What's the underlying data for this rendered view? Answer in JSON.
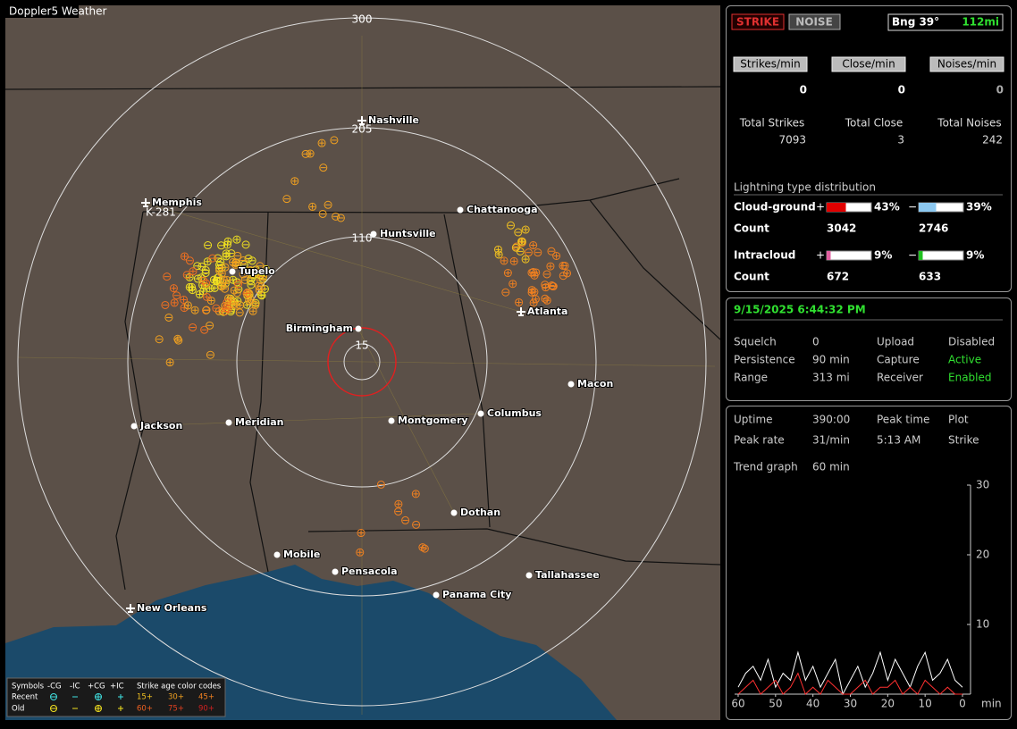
{
  "map": {
    "title": "Doppler5 Weather",
    "range_labels": [
      "300",
      "205",
      "110",
      "15"
    ],
    "marker_label": "K-281",
    "cities": [
      "Nashville",
      "Memphis",
      "Chattanooga",
      "Huntsville",
      "Tupelo",
      "Atlanta",
      "Birmingham",
      "Macon",
      "Jackson",
      "Meridian",
      "Montgomery",
      "Columbus",
      "Dothan",
      "Mobile",
      "Pensacola",
      "Tallahassee",
      "Panama City",
      "New Orleans"
    ]
  },
  "legend": {
    "symbols_label": "Symbols",
    "symbol_headers": [
      "-CG",
      "-IC",
      "+CG",
      "+IC"
    ],
    "age_label": "Strike age color codes",
    "rows": [
      "Recent",
      "Old"
    ],
    "recent_ages": [
      "15+",
      "30+",
      "45+"
    ],
    "old_ages": [
      "60+",
      "75+",
      "90+"
    ]
  },
  "header": {
    "buttons": [
      "STRIKE",
      "NOISE"
    ],
    "bearing": "Bng 39°",
    "distance": "112mi"
  },
  "rates": {
    "labels": [
      "Strikes/min",
      "Close/min",
      "Noises/min"
    ],
    "values": [
      0,
      0,
      0
    ]
  },
  "totals": {
    "labels": [
      "Total Strikes",
      "Total Close",
      "Total Noises"
    ],
    "values": [
      7093,
      3,
      242
    ]
  },
  "distribution": {
    "title": "Lightning type distribution",
    "rows": [
      {
        "name": "Cloud-ground",
        "signs": [
          "+",
          "−"
        ],
        "values": [
          43,
          39
        ],
        "value_labels": [
          "43%",
          "39%"
        ],
        "colors": [
          "#e00000",
          "#8cc8f0"
        ],
        "count_label": "Count",
        "counts": [
          3042,
          2746
        ]
      },
      {
        "name": "Intracloud",
        "signs": [
          "+",
          "−"
        ],
        "values": [
          9,
          9
        ],
        "value_labels": [
          "9%",
          "9%"
        ],
        "colors": [
          "#e060a0",
          "#20c020"
        ],
        "count_label": "Count",
        "counts": [
          672,
          633
        ]
      }
    ]
  },
  "status": {
    "datetime": "9/15/2025 6:44:32 PM",
    "settings": [
      [
        "Squelch",
        0,
        "Upload",
        "Disabled"
      ],
      [
        "Persistence",
        "90 min",
        "Capture",
        "Active"
      ],
      [
        "Range",
        "313 mi",
        "Receiver",
        "Enabled"
      ]
    ]
  },
  "stats": {
    "rows": [
      [
        "Uptime",
        "390:00",
        "Peak time",
        "Plot"
      ],
      [
        "Peak rate",
        "31/min",
        "5:13 AM",
        "Strike"
      ]
    ],
    "trend_label": "Trend graph",
    "trend_value": "60 min"
  },
  "chart_data": {
    "type": "line",
    "x": [
      60,
      58,
      56,
      54,
      52,
      50,
      48,
      46,
      44,
      42,
      40,
      38,
      36,
      34,
      32,
      30,
      28,
      26,
      24,
      22,
      20,
      18,
      16,
      14,
      12,
      10,
      8,
      6,
      4,
      2,
      0
    ],
    "xlim": [
      60,
      0
    ],
    "xticks": [
      60,
      50,
      40,
      30,
      20,
      10,
      0
    ],
    "x_label": "min",
    "ylim": [
      0,
      30
    ],
    "yticks": [
      10,
      20,
      30
    ],
    "series": [
      {
        "color": "#ffffff",
        "values": [
          1,
          3,
          4,
          2,
          5,
          1,
          3,
          2,
          6,
          2,
          4,
          1,
          3,
          5,
          0,
          2,
          4,
          1,
          3,
          6,
          2,
          5,
          3,
          1,
          4,
          6,
          2,
          3,
          5,
          2,
          1
        ]
      },
      {
        "color": "#ff3030",
        "values": [
          0,
          1,
          2,
          0,
          1,
          2,
          0,
          1,
          3,
          0,
          1,
          0,
          2,
          1,
          0,
          0,
          1,
          2,
          0,
          1,
          1,
          2,
          0,
          1,
          0,
          2,
          1,
          0,
          1,
          0,
          0
        ]
      }
    ]
  }
}
